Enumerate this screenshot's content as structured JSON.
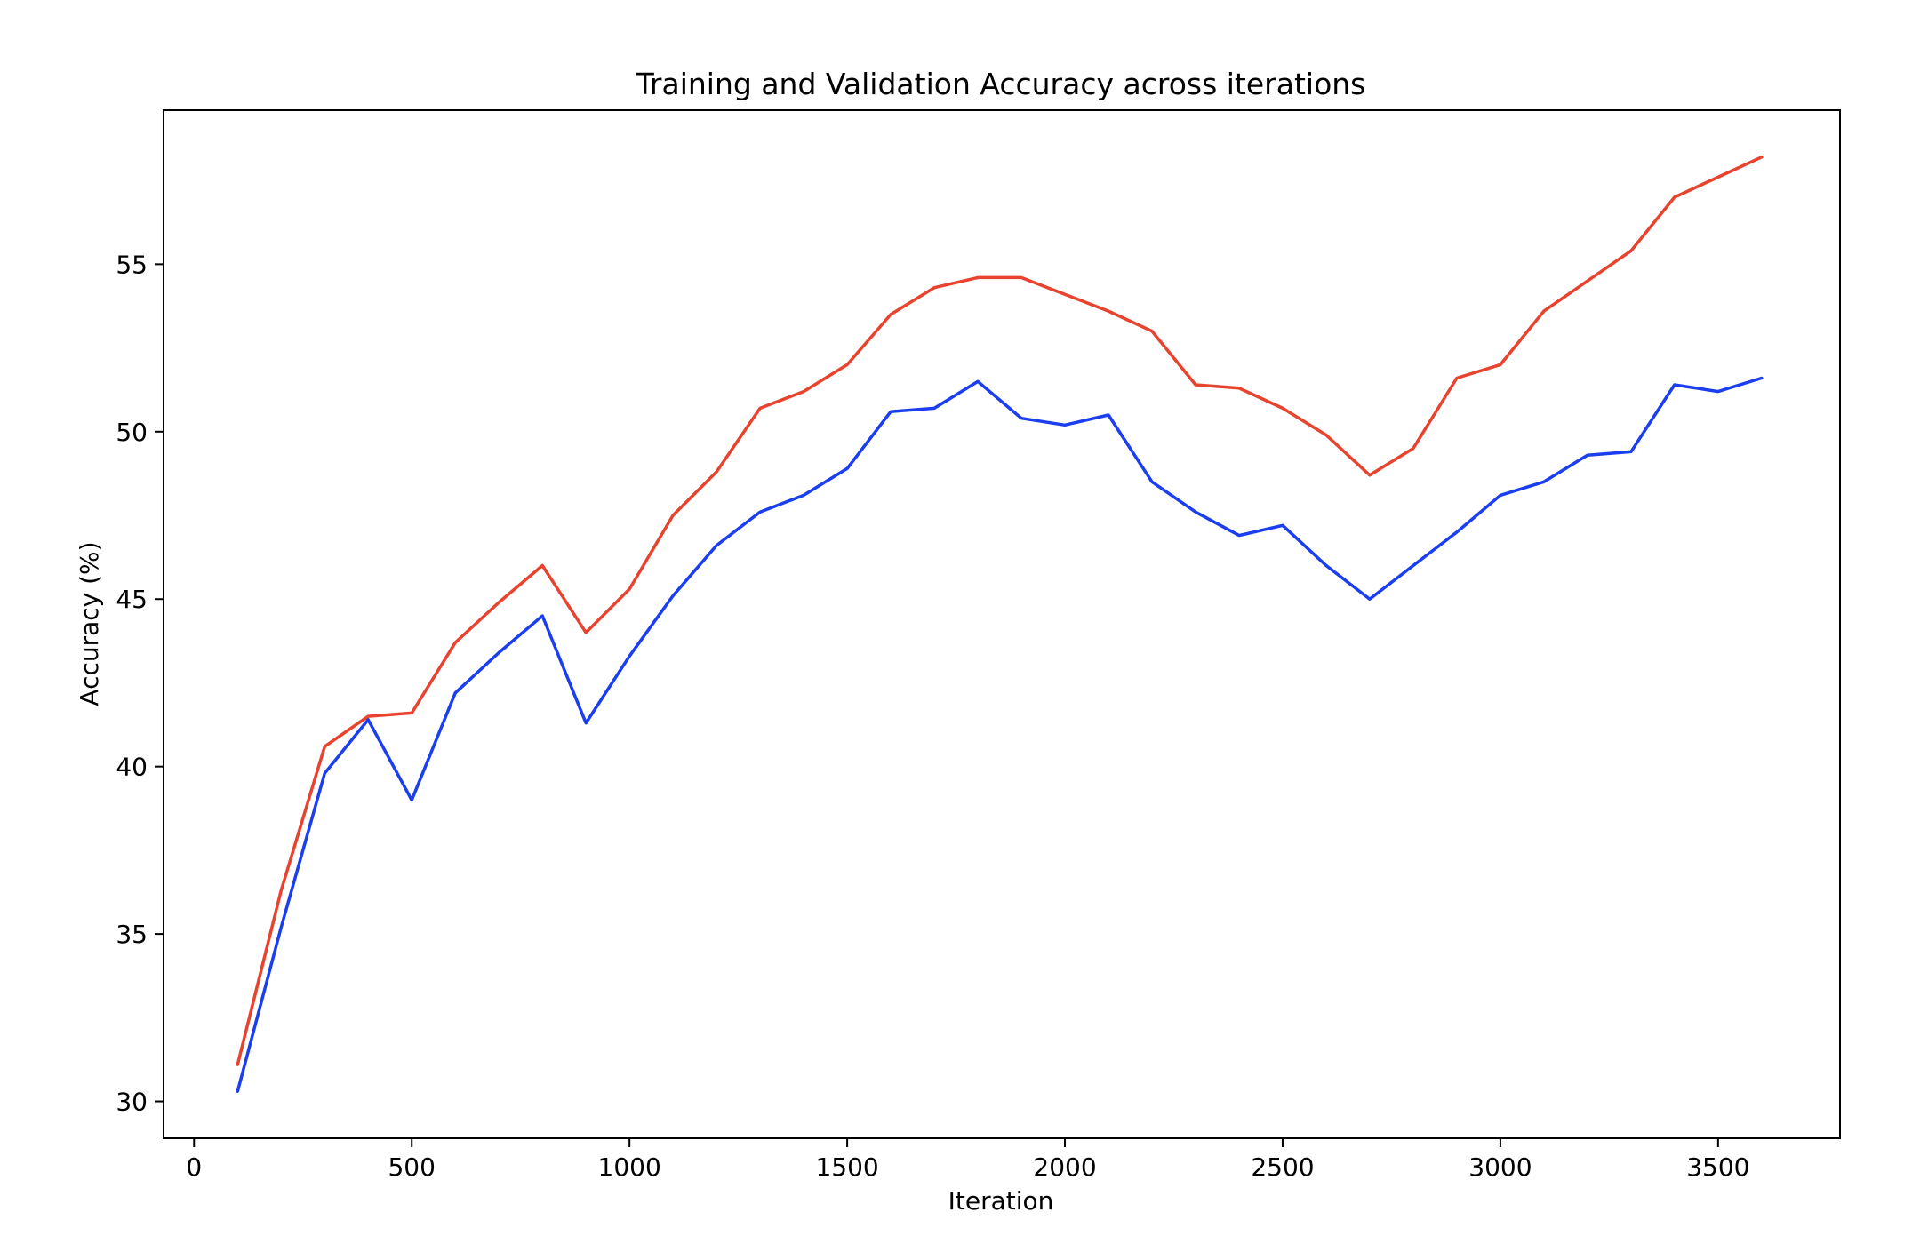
{
  "chart_data": {
    "type": "line",
    "title": "Training and Validation Accuracy across iterations",
    "xlabel": "Iteration",
    "ylabel": "Accuracy (%)",
    "xlim": [
      -70,
      3780
    ],
    "ylim": [
      28.9,
      59.6
    ],
    "x_ticks": [
      0,
      500,
      1000,
      1500,
      2000,
      2500,
      3000,
      3500
    ],
    "y_ticks": [
      30,
      35,
      40,
      45,
      50,
      55
    ],
    "grid": false,
    "legend": "none",
    "x": [
      100,
      200,
      300,
      400,
      500,
      600,
      700,
      800,
      900,
      1000,
      1100,
      1200,
      1300,
      1400,
      1500,
      1600,
      1700,
      1800,
      1900,
      2000,
      2100,
      2200,
      2300,
      2400,
      2500,
      2600,
      2700,
      2800,
      2900,
      3000,
      3100,
      3200,
      3300,
      3400,
      3500,
      3600
    ],
    "series": [
      {
        "color": "#e8432e",
        "values": [
          31.1,
          36.3,
          40.6,
          41.5,
          41.6,
          43.7,
          44.9,
          46.0,
          44.0,
          45.3,
          47.5,
          48.8,
          50.7,
          51.2,
          52.0,
          53.5,
          54.3,
          54.6,
          54.6,
          54.1,
          53.6,
          53.0,
          51.4,
          51.3,
          50.7,
          49.9,
          48.7,
          49.5,
          51.6,
          52.0,
          53.6,
          54.5,
          55.4,
          57.0,
          57.6,
          58.2
        ]
      },
      {
        "color": "#1a3ef0",
        "values": [
          30.3,
          35.2,
          39.8,
          41.4,
          39.0,
          42.2,
          43.4,
          44.5,
          41.3,
          43.3,
          45.1,
          46.6,
          47.6,
          48.1,
          48.9,
          50.6,
          50.7,
          51.5,
          50.4,
          50.2,
          50.5,
          48.5,
          47.6,
          46.9,
          47.2,
          46.0,
          45.0,
          46.0,
          47.0,
          48.1,
          48.5,
          49.3,
          49.4,
          51.4,
          51.2,
          51.6
        ]
      }
    ]
  }
}
